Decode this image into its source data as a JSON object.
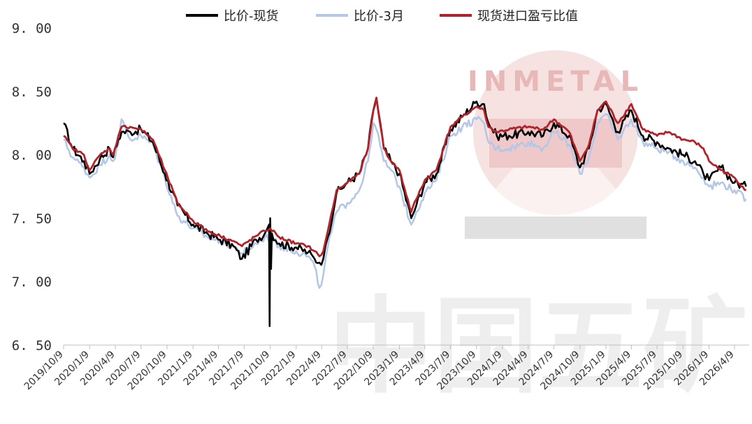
{
  "watermark": {
    "logo_text": "INMETAL",
    "caption": "中国五矿",
    "logo_color": "#e8b8b8",
    "caption_color": "#e6e6e6"
  },
  "chart_data": {
    "type": "line",
    "title": "",
    "xlabel": "",
    "ylabel": "",
    "ylim": [
      6.5,
      9.0
    ],
    "y_ticks": [
      "9.00",
      "8.50",
      "8.00",
      "7.50",
      "7.00",
      "6.50"
    ],
    "x_ticks": [
      "2019/10/9",
      "2020/1/9",
      "2020/4/9",
      "2020/7/9",
      "2020/10/9",
      "2021/1/9",
      "2021/4/9",
      "2021/7/9",
      "2021/10/9",
      "2022/1/9",
      "2022/4/9",
      "2022/7/9",
      "2022/10/9",
      "2023/1/9",
      "2023/4/9",
      "2023/7/9",
      "2023/10/9",
      "2024/1/9",
      "2024/4/9",
      "2024/7/9",
      "2024/10/9",
      "2025/1/9",
      "2025/4/9",
      "2025/7/9",
      "2025/10/9",
      "2026/1/9",
      "2026/4/9"
    ],
    "legend_position": "top-center",
    "grid": false,
    "series": [
      {
        "name": "比价-现货",
        "color": "#000000",
        "x": [
          "2019-10-09",
          "2019-11-10",
          "2019-12-20",
          "2020-01-09",
          "2020-02-15",
          "2020-03-20",
          "2020-04-01",
          "2020-04-20",
          "2020-05-01",
          "2020-06-01",
          "2020-07-09",
          "2020-08-20",
          "2020-10-01",
          "2020-11-15",
          "2021-01-09",
          "2021-03-01",
          "2021-04-15",
          "2021-06-01",
          "2021-07-01",
          "2021-08-20",
          "2021-09-20",
          "2021-10-05",
          "2021-10-07",
          "2021-10-09",
          "2021-10-12",
          "2021-10-15",
          "2021-11-10",
          "2022-01-09",
          "2022-02-20",
          "2022-03-15",
          "2022-04-01",
          "2022-04-15",
          "2022-05-01",
          "2022-06-01",
          "2022-07-09",
          "2022-08-20",
          "2022-09-20",
          "2022-10-09",
          "2022-10-20",
          "2022-11-15",
          "2022-12-10",
          "2023-01-09",
          "2023-02-20",
          "2023-03-10",
          "2023-04-09",
          "2023-05-20",
          "2023-07-09",
          "2023-08-20",
          "2023-10-09",
          "2023-11-05",
          "2023-11-20",
          "2023-12-20",
          "2024-02-01",
          "2024-04-09",
          "2024-06-01",
          "2024-07-09",
          "2024-09-01",
          "2024-10-09",
          "2024-11-10",
          "2024-12-10",
          "2025-01-09",
          "2025-02-20",
          "2025-04-09",
          "2025-05-20",
          "2025-07-09",
          "2025-08-20",
          "2025-10-09",
          "2025-11-20",
          "2025-12-20",
          "2026-01-09",
          "2026-02-20",
          "2026-04-09",
          "2026-05-20"
        ],
        "y": [
          8.25,
          8.05,
          7.95,
          7.85,
          7.97,
          8.05,
          7.98,
          8.12,
          8.18,
          8.18,
          8.2,
          8.1,
          7.85,
          7.6,
          7.45,
          7.38,
          7.33,
          7.28,
          7.18,
          7.33,
          7.38,
          7.45,
          6.65,
          7.5,
          7.1,
          7.38,
          7.3,
          7.27,
          7.23,
          7.18,
          7.15,
          7.18,
          7.35,
          7.7,
          7.78,
          7.85,
          8.05,
          8.35,
          8.45,
          8.05,
          7.95,
          7.85,
          7.5,
          7.6,
          7.78,
          7.85,
          8.2,
          8.3,
          8.42,
          8.4,
          8.25,
          8.15,
          8.15,
          8.18,
          8.15,
          8.25,
          8.15,
          7.9,
          8.05,
          8.35,
          8.4,
          8.18,
          8.35,
          8.15,
          8.1,
          8.05,
          8.0,
          7.95,
          7.85,
          7.8,
          7.9,
          7.78,
          7.75
        ]
      },
      {
        "name": "比价-3月",
        "color": "#b4c7e7",
        "x": [
          "2019-10-09",
          "2019-11-10",
          "2019-12-20",
          "2020-01-09",
          "2020-02-15",
          "2020-03-20",
          "2020-04-01",
          "2020-04-20",
          "2020-05-01",
          "2020-06-01",
          "2020-07-09",
          "2020-08-20",
          "2020-10-01",
          "2020-11-15",
          "2021-01-09",
          "2021-03-01",
          "2021-04-15",
          "2021-06-01",
          "2021-07-01",
          "2021-08-20",
          "2021-09-20",
          "2021-10-09",
          "2021-11-10",
          "2022-01-09",
          "2022-02-20",
          "2022-03-15",
          "2022-04-01",
          "2022-04-15",
          "2022-05-01",
          "2022-06-01",
          "2022-07-09",
          "2022-08-20",
          "2022-09-20",
          "2022-10-09",
          "2022-10-20",
          "2022-11-15",
          "2022-12-10",
          "2023-01-09",
          "2023-02-20",
          "2023-03-10",
          "2023-04-09",
          "2023-05-20",
          "2023-07-09",
          "2023-08-20",
          "2023-10-09",
          "2023-11-05",
          "2023-11-20",
          "2023-12-20",
          "2024-02-01",
          "2024-04-09",
          "2024-06-01",
          "2024-07-09",
          "2024-09-01",
          "2024-10-09",
          "2024-11-10",
          "2024-12-10",
          "2025-01-09",
          "2025-02-20",
          "2025-04-09",
          "2025-05-20",
          "2025-07-09",
          "2025-08-20",
          "2025-10-09",
          "2025-11-20",
          "2025-12-20",
          "2026-01-09",
          "2026-02-20",
          "2026-04-09",
          "2026-05-20"
        ],
        "y": [
          8.12,
          7.98,
          7.9,
          7.82,
          7.92,
          8.0,
          7.95,
          8.08,
          8.28,
          8.12,
          8.15,
          8.08,
          7.82,
          7.52,
          7.42,
          7.35,
          7.32,
          7.28,
          7.22,
          7.3,
          7.35,
          7.35,
          7.28,
          7.24,
          7.2,
          7.12,
          6.95,
          7.05,
          7.28,
          7.55,
          7.62,
          7.72,
          7.95,
          8.25,
          8.2,
          7.95,
          7.88,
          7.75,
          7.45,
          7.55,
          7.7,
          7.8,
          8.15,
          8.22,
          8.28,
          8.25,
          8.1,
          8.05,
          8.05,
          8.1,
          8.05,
          8.18,
          8.08,
          7.85,
          7.98,
          8.25,
          8.32,
          8.12,
          8.28,
          8.1,
          8.05,
          8.02,
          7.95,
          7.9,
          7.82,
          7.75,
          7.78,
          7.72,
          7.65
        ]
      },
      {
        "name": "现货进口盈亏比值",
        "color": "#b2222b",
        "x": [
          "2019-10-09",
          "2019-11-10",
          "2019-12-20",
          "2020-01-09",
          "2020-02-15",
          "2020-03-20",
          "2020-04-01",
          "2020-04-20",
          "2020-05-01",
          "2020-06-01",
          "2020-07-09",
          "2020-08-20",
          "2020-10-01",
          "2020-11-15",
          "2021-01-09",
          "2021-03-01",
          "2021-04-15",
          "2021-06-01",
          "2021-07-01",
          "2021-08-20",
          "2021-09-20",
          "2021-10-09",
          "2021-11-10",
          "2022-01-09",
          "2022-02-20",
          "2022-03-15",
          "2022-04-01",
          "2022-04-15",
          "2022-05-01",
          "2022-06-01",
          "2022-07-09",
          "2022-08-20",
          "2022-09-20",
          "2022-10-09",
          "2022-10-20",
          "2022-11-15",
          "2022-12-10",
          "2023-01-09",
          "2023-02-20",
          "2023-03-10",
          "2023-04-09",
          "2023-05-20",
          "2023-07-09",
          "2023-08-20",
          "2023-10-09",
          "2023-11-05",
          "2023-11-20",
          "2023-12-20",
          "2024-02-01",
          "2024-04-09",
          "2024-06-01",
          "2024-07-09",
          "2024-09-01",
          "2024-10-09",
          "2024-11-10",
          "2024-12-10",
          "2025-01-09",
          "2025-02-20",
          "2025-04-09",
          "2025-05-20",
          "2025-07-09",
          "2025-08-20",
          "2025-10-09",
          "2025-11-20",
          "2025-12-20",
          "2026-01-09",
          "2026-02-20",
          "2026-04-09",
          "2026-05-20"
        ],
        "y": [
          8.15,
          8.05,
          8.0,
          7.88,
          8.0,
          8.05,
          8.0,
          8.15,
          8.22,
          8.22,
          8.2,
          8.12,
          7.88,
          7.62,
          7.48,
          7.4,
          7.36,
          7.32,
          7.28,
          7.36,
          7.4,
          7.42,
          7.35,
          7.3,
          7.28,
          7.24,
          7.2,
          7.24,
          7.4,
          7.72,
          7.78,
          7.85,
          8.05,
          8.35,
          8.45,
          8.05,
          7.95,
          7.88,
          7.55,
          7.65,
          7.8,
          7.88,
          8.22,
          8.3,
          8.38,
          8.35,
          8.22,
          8.18,
          8.2,
          8.22,
          8.2,
          8.28,
          8.18,
          7.95,
          8.08,
          8.35,
          8.42,
          8.25,
          8.4,
          8.2,
          8.15,
          8.18,
          8.12,
          8.1,
          8.05,
          7.95,
          7.88,
          7.82,
          7.72
        ]
      }
    ]
  }
}
